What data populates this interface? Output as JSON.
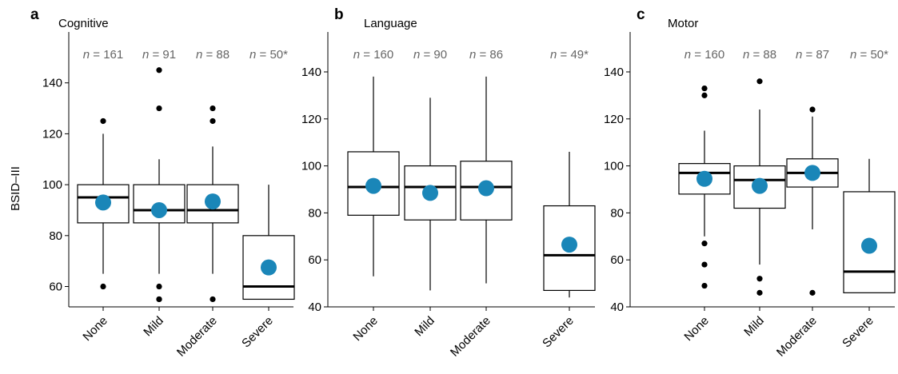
{
  "y_axis_label": "BSID–III",
  "colors": {
    "mean_dot": "#1a86b8",
    "box_stroke": "#000000",
    "n_label": "#666666"
  },
  "chart_data": [
    {
      "panel": "a",
      "title": "Cognitive",
      "type": "box",
      "ylabel": "BSID–III",
      "ylim": [
        52,
        160
      ],
      "yticks": [
        60,
        80,
        100,
        120,
        140
      ],
      "categories": [
        "None",
        "Mild",
        "Moderate",
        "Severe"
      ],
      "n_labels": [
        "161",
        "91",
        "88",
        "50*"
      ],
      "boxes": [
        {
          "whisker_low": 65,
          "q1": 85,
          "median": 95,
          "q3": 100,
          "whisker_high": 120,
          "mean": 93,
          "outliers": [
            60,
            125
          ]
        },
        {
          "whisker_low": 65,
          "q1": 85,
          "median": 90,
          "q3": 100,
          "whisker_high": 110,
          "mean": 90,
          "outliers": [
            55,
            55,
            60,
            130,
            145
          ]
        },
        {
          "whisker_low": 65,
          "q1": 85,
          "median": 90,
          "q3": 100,
          "whisker_high": 115,
          "mean": 93.4,
          "outliers": [
            55,
            125,
            130
          ]
        },
        {
          "whisker_low": 55,
          "q1": 55,
          "median": 60,
          "q3": 80,
          "whisker_high": 100,
          "mean": 67.5,
          "outliers": []
        }
      ]
    },
    {
      "panel": "b",
      "title": "Language",
      "type": "box",
      "ylabel": "",
      "ylim": [
        40,
        157
      ],
      "yticks": [
        40,
        60,
        80,
        100,
        120,
        140
      ],
      "categories": [
        "None",
        "Mild",
        "Moderate",
        "Severe"
      ],
      "n_labels": [
        "160",
        "90",
        "86",
        "49*"
      ],
      "boxes": [
        {
          "whisker_low": 53,
          "q1": 79,
          "median": 91,
          "q3": 106,
          "whisker_high": 138,
          "mean": 91.5,
          "outliers": []
        },
        {
          "whisker_low": 47,
          "q1": 77,
          "median": 91,
          "q3": 100,
          "whisker_high": 129,
          "mean": 88.5,
          "outliers": []
        },
        {
          "whisker_low": 50,
          "q1": 77,
          "median": 91,
          "q3": 102,
          "whisker_high": 138,
          "mean": 90.5,
          "outliers": []
        },
        {
          "whisker_low": 44,
          "q1": 47,
          "median": 62,
          "q3": 83,
          "whisker_high": 106,
          "mean": 66.5,
          "outliers": []
        }
      ]
    },
    {
      "panel": "c",
      "title": "Motor",
      "type": "box",
      "ylabel": "",
      "ylim": [
        40,
        157
      ],
      "yticks": [
        40,
        60,
        80,
        100,
        120,
        140
      ],
      "categories": [
        "None",
        "Mild",
        "Moderate",
        "Severe"
      ],
      "n_labels": [
        "160",
        "88",
        "87",
        "50*"
      ],
      "boxes": [
        {
          "whisker_low": 70,
          "q1": 88,
          "median": 97,
          "q3": 101,
          "whisker_high": 115,
          "mean": 94.5,
          "outliers": [
            49,
            58,
            67,
            130,
            133
          ]
        },
        {
          "whisker_low": 58,
          "q1": 82,
          "median": 94,
          "q3": 100,
          "whisker_high": 124,
          "mean": 91.5,
          "outliers": [
            46,
            52,
            136
          ]
        },
        {
          "whisker_low": 73,
          "q1": 91,
          "median": 97,
          "q3": 103,
          "whisker_high": 121,
          "mean": 97,
          "outliers": [
            46,
            124
          ]
        },
        {
          "whisker_low": 46,
          "q1": 46,
          "median": 55,
          "q3": 89,
          "whisker_high": 103,
          "mean": 66,
          "outliers": []
        }
      ]
    }
  ]
}
